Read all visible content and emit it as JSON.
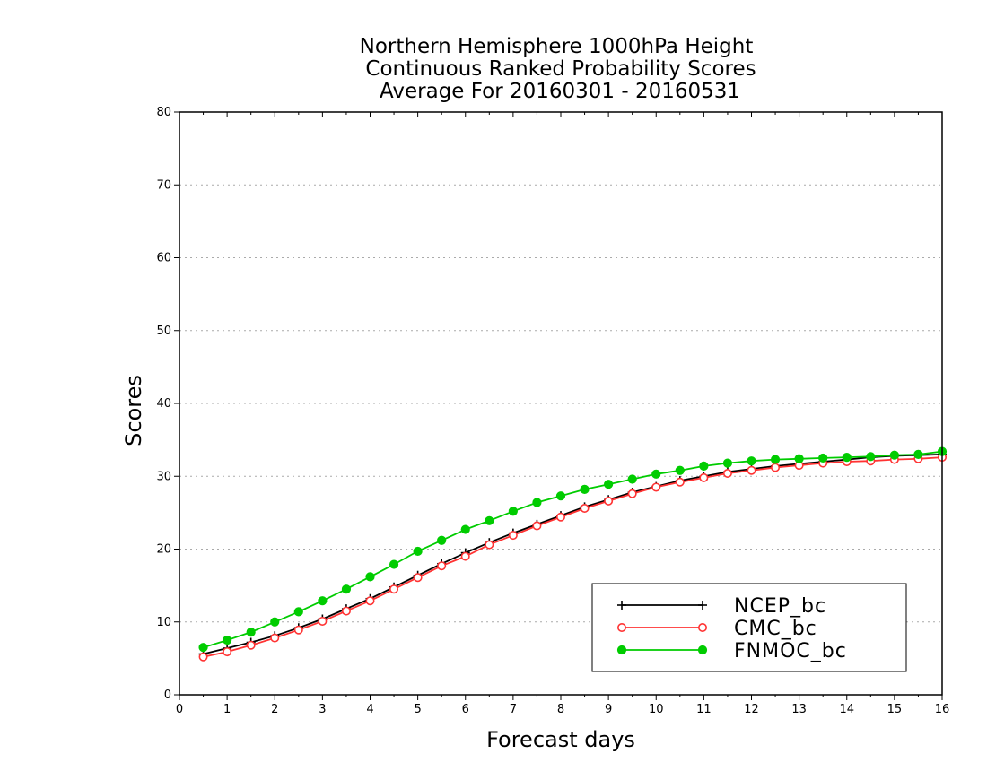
{
  "chart_data": {
    "type": "line",
    "title": [
      "Northern Hemisphere 1000hPa Height",
      "Continuous Ranked Probability Scores",
      "Average For 20160301 - 20160531"
    ],
    "xlabel": "Forecast days",
    "ylabel": "Scores",
    "xlim": [
      0,
      16
    ],
    "ylim": [
      0,
      80
    ],
    "xticks": [
      0,
      1,
      2,
      3,
      4,
      5,
      6,
      7,
      8,
      9,
      10,
      11,
      12,
      13,
      14,
      15,
      16
    ],
    "yticks": [
      0,
      10,
      20,
      30,
      40,
      50,
      60,
      70,
      80
    ],
    "grid": true,
    "legend_position": "bottom-right",
    "x": [
      0.5,
      1,
      1.5,
      2,
      2.5,
      3,
      3.5,
      4,
      4.5,
      5,
      5.5,
      6,
      6.5,
      7,
      7.5,
      8,
      8.5,
      9,
      9.5,
      10,
      10.5,
      11,
      11.5,
      12,
      12.5,
      13,
      13.5,
      14,
      14.5,
      15,
      15.5,
      16
    ],
    "series": [
      {
        "name": "NCEP_bc",
        "color": "#000000",
        "marker": "plus",
        "values": [
          5.6,
          6.4,
          7.2,
          8.1,
          9.2,
          10.4,
          11.8,
          13.2,
          14.8,
          16.4,
          18.0,
          19.5,
          20.9,
          22.2,
          23.4,
          24.6,
          25.8,
          26.8,
          27.8,
          28.6,
          29.4,
          30.0,
          30.6,
          31.0,
          31.4,
          31.7,
          32.0,
          32.3,
          32.6,
          32.8,
          32.9,
          33.0
        ]
      },
      {
        "name": "CMC_bc",
        "color": "#ff3333",
        "marker": "open-circle",
        "values": [
          5.2,
          5.9,
          6.8,
          7.8,
          8.9,
          10.1,
          11.5,
          12.9,
          14.5,
          16.1,
          17.7,
          19.0,
          20.6,
          21.9,
          23.2,
          24.4,
          25.6,
          26.6,
          27.6,
          28.5,
          29.2,
          29.8,
          30.4,
          30.8,
          31.2,
          31.5,
          31.8,
          32.0,
          32.1,
          32.3,
          32.4,
          32.6
        ]
      },
      {
        "name": "FNMOC_bc",
        "color": "#00cc00",
        "marker": "filled-circle",
        "values": [
          6.5,
          7.5,
          8.6,
          10.0,
          11.4,
          12.9,
          14.5,
          16.2,
          17.9,
          19.7,
          21.2,
          22.7,
          23.9,
          25.2,
          26.4,
          27.3,
          28.2,
          28.9,
          29.6,
          30.3,
          30.8,
          31.4,
          31.8,
          32.1,
          32.3,
          32.4,
          32.5,
          32.6,
          32.7,
          32.9,
          33.0,
          33.4
        ]
      }
    ]
  }
}
